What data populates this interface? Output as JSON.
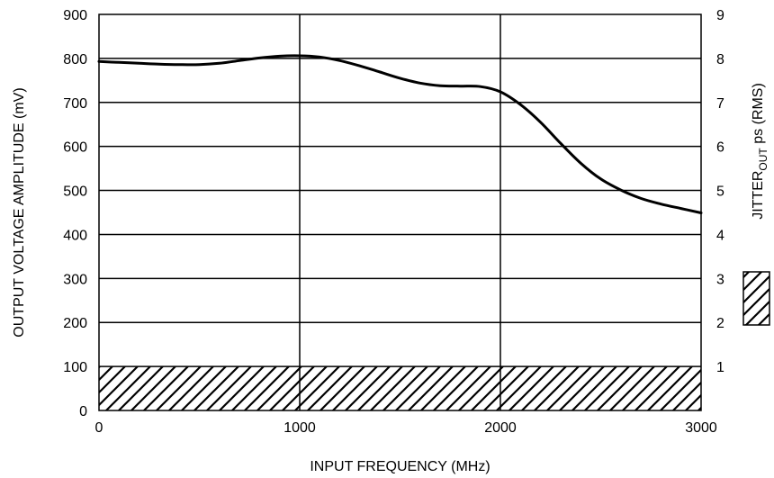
{
  "chart_data": {
    "type": "line",
    "x": [
      0,
      100,
      200,
      300,
      400,
      500,
      600,
      700,
      800,
      900,
      1000,
      1100,
      1200,
      1300,
      1400,
      1500,
      1600,
      1700,
      1800,
      1900,
      2000,
      2100,
      2200,
      2300,
      2400,
      2500,
      2600,
      2700,
      2800,
      2900,
      3000
    ],
    "series": [
      {
        "values": [
          793,
          791,
          789,
          787,
          786,
          786,
          789,
          795,
          801,
          805,
          806,
          803,
          795,
          783,
          769,
          755,
          744,
          738,
          737,
          736,
          724,
          695,
          655,
          607,
          562,
          526,
          501,
          482,
          469,
          459,
          449
        ],
        "color": "#000000"
      }
    ],
    "xlabel": "INPUT FREQUENCY (MHz)",
    "ylabel": "OUTPUT VOLTAGE AMPLITUDE (mV)",
    "y2label": {
      "pre": "JITTER",
      "sub": "OUT",
      "post": " ps (RMS)"
    },
    "xlim": [
      0,
      3000
    ],
    "ylim": [
      0,
      900
    ],
    "y2lim": [
      0,
      9
    ],
    "xticks": [
      "0",
      "1000",
      "2000",
      "3000"
    ],
    "yticks": [
      "0",
      "100",
      "200",
      "300",
      "400",
      "500",
      "600",
      "700",
      "800",
      "900"
    ],
    "y2ticks": [
      "1",
      "2",
      "3",
      "4",
      "5",
      "6",
      "7",
      "8",
      "9"
    ],
    "jitter_band": {
      "y0": 0,
      "y1": 100
    },
    "grid": true,
    "legend": "right"
  }
}
